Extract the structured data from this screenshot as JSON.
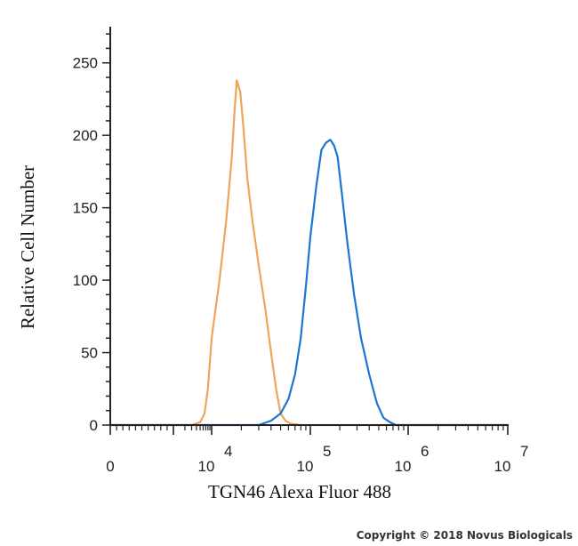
{
  "chart_data": {
    "type": "line",
    "xlabel": "TGN46 Alexa Fluor 488",
    "ylabel": "Relative Cell Number",
    "xscale": "biexponential",
    "ylim": [
      0,
      275
    ],
    "yticks": [
      0,
      50,
      100,
      150,
      200,
      250
    ],
    "xticks": [
      {
        "value": 0,
        "base": "0",
        "exp": ""
      },
      {
        "value": 10000,
        "base": "10",
        "exp": "4"
      },
      {
        "value": 100000,
        "base": "10",
        "exp": "5"
      },
      {
        "value": 1000000,
        "base": "10",
        "exp": "6"
      },
      {
        "value": 10000000,
        "base": "10",
        "exp": "7"
      }
    ],
    "grid": false,
    "series": [
      {
        "color": "#f0a35c",
        "x": [
          0,
          3000,
          5000,
          6500,
          8000,
          10000,
          12000,
          14000,
          16000,
          17000,
          18000,
          19500,
          21000,
          23000,
          26000,
          30000,
          35000,
          40000,
          45000,
          50000,
          56000,
          63000,
          80000,
          10000000
        ],
        "y": [
          0,
          0,
          2,
          8,
          25,
          60,
          100,
          140,
          185,
          215,
          238,
          230,
          205,
          170,
          140,
          110,
          80,
          50,
          25,
          8,
          3,
          1,
          0,
          0
        ]
      },
      {
        "color": "#1a76d2",
        "x": [
          0,
          30000,
          40000,
          50000,
          60000,
          70000,
          80000,
          90000,
          100000,
          115000,
          130000,
          145000,
          160000,
          175000,
          190000,
          210000,
          240000,
          280000,
          330000,
          400000,
          480000,
          560000,
          650000,
          750000,
          1000000,
          10000000
        ],
        "y": [
          0,
          0,
          3,
          8,
          18,
          35,
          60,
          95,
          130,
          165,
          190,
          195,
          197,
          193,
          185,
          160,
          125,
          90,
          60,
          35,
          15,
          5,
          2,
          0,
          0,
          0
        ]
      }
    ]
  },
  "copyright": "Copyright © 2018 Novus Biologicals"
}
